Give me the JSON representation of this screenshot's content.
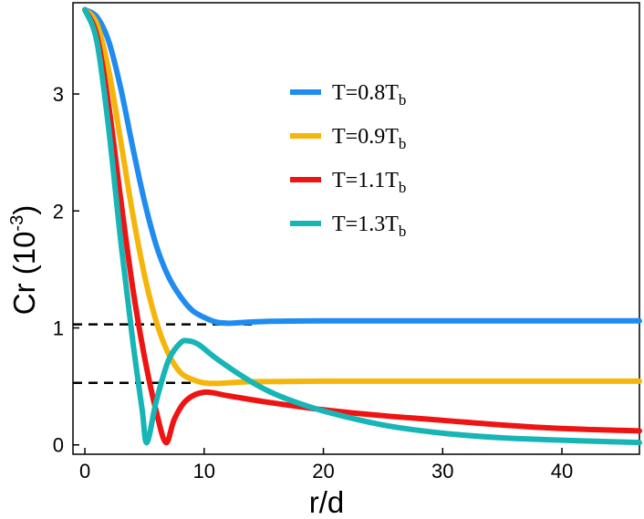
{
  "chart_data": {
    "type": "line",
    "xlabel": "r/d",
    "ylabel": {
      "base": "Cr (10",
      "exp": "-3",
      "close": ")"
    },
    "xlim": [
      -1,
      46.5
    ],
    "ylim": [
      -0.08,
      3.78
    ],
    "xticks": [
      0,
      10,
      20,
      30,
      40
    ],
    "yticks": [
      0,
      1,
      2,
      3
    ],
    "grid": false,
    "legend_position": "top-center",
    "series": [
      {
        "name": {
          "base": "T=0.8T",
          "sub": "b"
        },
        "color": "#1f8cf0",
        "points": [
          [
            0,
            3.72
          ],
          [
            1,
            3.66
          ],
          [
            2,
            3.45
          ],
          [
            3,
            3.05
          ],
          [
            4,
            2.55
          ],
          [
            5,
            2.08
          ],
          [
            6,
            1.7
          ],
          [
            7,
            1.44
          ],
          [
            8,
            1.27
          ],
          [
            9,
            1.15
          ],
          [
            10,
            1.09
          ],
          [
            11,
            1.05
          ],
          [
            12,
            1.04
          ],
          [
            13,
            1.045
          ],
          [
            15,
            1.055
          ],
          [
            20,
            1.06
          ],
          [
            30,
            1.06
          ],
          [
            46.5,
            1.06
          ]
        ]
      },
      {
        "name": {
          "base": "T=0.9T",
          "sub": "b"
        },
        "color": "#f5b50a",
        "points": [
          [
            0,
            3.72
          ],
          [
            1,
            3.6
          ],
          [
            2,
            3.2
          ],
          [
            3,
            2.6
          ],
          [
            4,
            1.98
          ],
          [
            5,
            1.45
          ],
          [
            6,
            1.05
          ],
          [
            7,
            0.78
          ],
          [
            8,
            0.62
          ],
          [
            9,
            0.56
          ],
          [
            10,
            0.53
          ],
          [
            11,
            0.525
          ],
          [
            12,
            0.53
          ],
          [
            14,
            0.54
          ],
          [
            20,
            0.545
          ],
          [
            30,
            0.545
          ],
          [
            46.5,
            0.545
          ]
        ]
      },
      {
        "name": {
          "base": "T=1.1T",
          "sub": "b"
        },
        "color": "#ef1414",
        "points": [
          [
            0,
            3.72
          ],
          [
            1,
            3.5
          ],
          [
            2,
            2.9
          ],
          [
            3,
            2.1
          ],
          [
            4,
            1.35
          ],
          [
            5,
            0.75
          ],
          [
            6,
            0.28
          ],
          [
            6.8,
            0.02
          ],
          [
            7.5,
            0.22
          ],
          [
            8.5,
            0.38
          ],
          [
            10,
            0.45
          ],
          [
            12,
            0.42
          ],
          [
            15,
            0.37
          ],
          [
            20,
            0.3
          ],
          [
            25,
            0.25
          ],
          [
            30,
            0.21
          ],
          [
            35,
            0.17
          ],
          [
            40,
            0.14
          ],
          [
            46.5,
            0.12
          ]
        ]
      },
      {
        "name": {
          "base": "T=1.3T",
          "sub": "b"
        },
        "color": "#17b5b5",
        "points": [
          [
            0,
            3.72
          ],
          [
            1,
            3.45
          ],
          [
            2,
            2.7
          ],
          [
            3,
            1.75
          ],
          [
            4,
            0.9
          ],
          [
            4.8,
            0.3
          ],
          [
            5.2,
            0.02
          ],
          [
            6,
            0.38
          ],
          [
            7,
            0.72
          ],
          [
            8,
            0.87
          ],
          [
            8.6,
            0.89
          ],
          [
            9.5,
            0.86
          ],
          [
            11,
            0.74
          ],
          [
            13,
            0.6
          ],
          [
            15,
            0.48
          ],
          [
            17,
            0.39
          ],
          [
            20,
            0.29
          ],
          [
            25,
            0.17
          ],
          [
            30,
            0.1
          ],
          [
            35,
            0.06
          ],
          [
            40,
            0.04
          ],
          [
            46.5,
            0.02
          ]
        ]
      }
    ],
    "reference_lines": [
      {
        "y": 1.03,
        "x_end": 14,
        "style": "dashed",
        "color": "#000000"
      },
      {
        "y": 0.53,
        "x_end": 16,
        "style": "dashed",
        "color": "#000000"
      }
    ]
  }
}
